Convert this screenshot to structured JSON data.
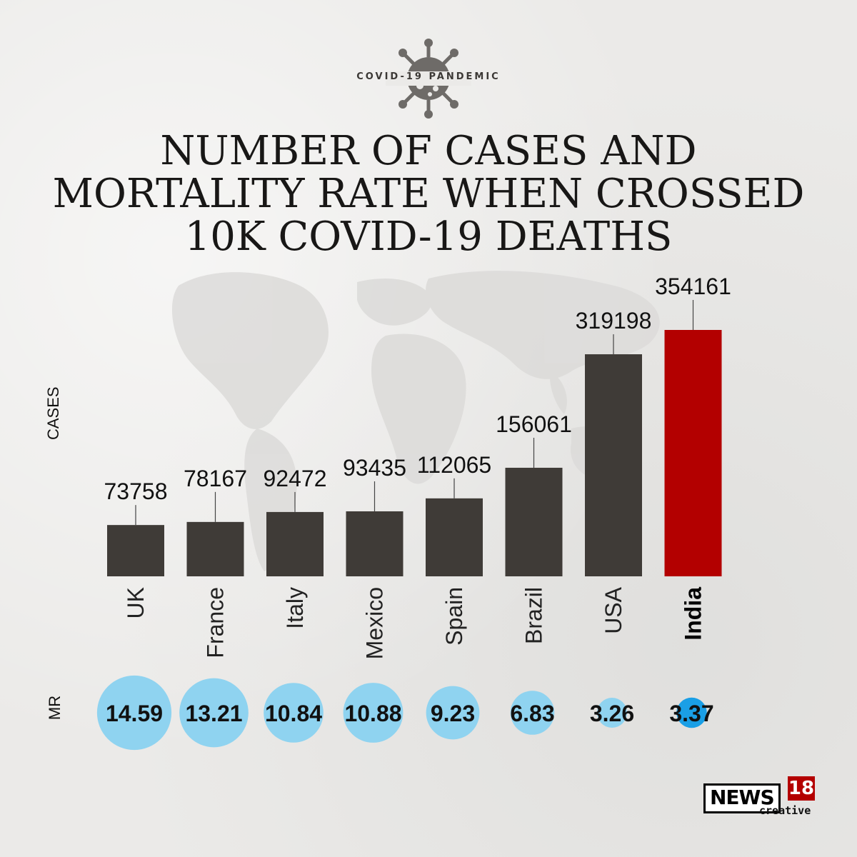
{
  "header": {
    "kicker": "COVID-19 PANDEMIC",
    "title_lines": [
      "NUMBER OF CASES AND",
      "MORTALITY RATE WHEN CROSSED",
      "10K COVID-19 DEATHS"
    ]
  },
  "labels": {
    "cases": "CASES",
    "mr": "MR"
  },
  "logo": {
    "brand": "NEWS",
    "number": "18",
    "sub": "creative"
  },
  "colors": {
    "bar": "#3f3b37",
    "highlight_bar": "#b30000",
    "bubble": "#8fd3f0",
    "highlight_bubble": "#1a9fe6",
    "leader": "#444444"
  },
  "chart_data": [
    {
      "type": "bar",
      "title": "NUMBER OF CASES AND MORTALITY RATE WHEN CROSSED 10K COVID-19 DEATHS",
      "ylabel": "CASES",
      "categories": [
        "UK",
        "France",
        "Italy",
        "Mexico",
        "Spain",
        "Brazil",
        "USA",
        "India"
      ],
      "values": [
        73758,
        78167,
        92472,
        93435,
        112065,
        156061,
        319198,
        354161
      ],
      "highlight": "India",
      "grid": false
    },
    {
      "type": "scatter",
      "ylabel": "MR",
      "categories": [
        "UK",
        "France",
        "Italy",
        "Mexico",
        "Spain",
        "Brazil",
        "USA",
        "India"
      ],
      "values": [
        14.59,
        13.21,
        10.84,
        10.88,
        9.23,
        6.83,
        3.26,
        3.37
      ],
      "highlight": "India"
    }
  ]
}
